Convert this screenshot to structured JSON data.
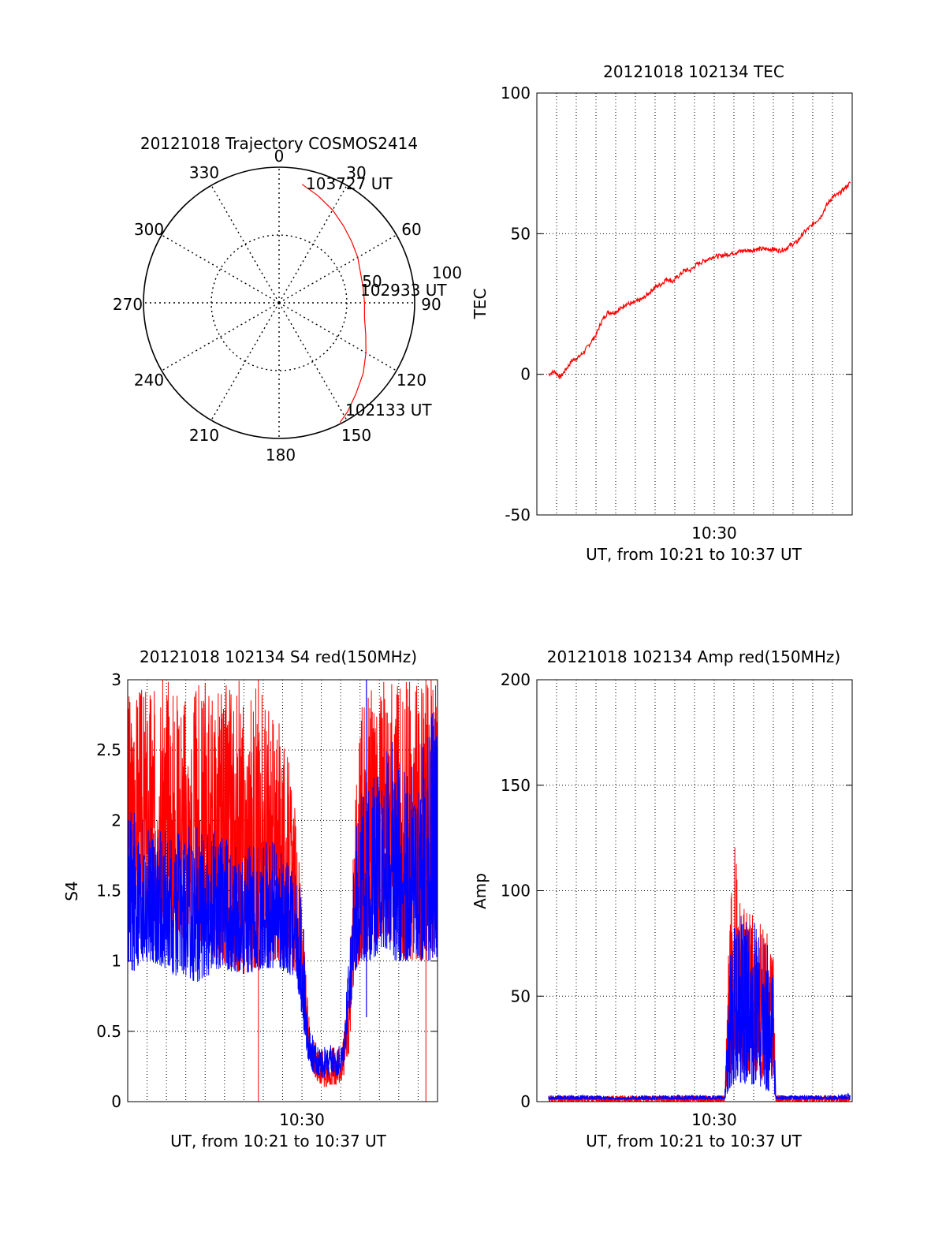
{
  "colors": {
    "red": "#ff0000",
    "blue": "#0000ff",
    "axis": "#000000",
    "grid": "#000000",
    "background": "#ffffff"
  },
  "polar": {
    "title": "20121018 Trajectory COSMOS2414",
    "angle_labels": [
      "0",
      "30",
      "60",
      "90",
      "120",
      "150",
      "180",
      "210",
      "240",
      "270",
      "300",
      "330"
    ],
    "radius_labels": [
      "50",
      "100"
    ],
    "time_labels": [
      "103727 UT",
      "102933 UT",
      "102133 UT"
    ]
  },
  "chart_data": [
    {
      "type": "polar-line",
      "name": "trajectory",
      "title": "20121018 Trajectory COSMOS2414",
      "angular_ticks": [
        0,
        30,
        60,
        90,
        120,
        150,
        180,
        210,
        240,
        270,
        300,
        330
      ],
      "radial_ticks": [
        50,
        100
      ],
      "direction": "clockwise",
      "zero": "top",
      "annotations": [
        {
          "text": "103727 UT",
          "azimuth": 11,
          "elev": 89
        },
        {
          "text": "102933 UT",
          "azimuth": 81,
          "elev": 63
        },
        {
          "text": "102133 UT",
          "azimuth": 153,
          "elev": 99
        }
      ],
      "series": [
        {
          "color": "#ff0000",
          "points": [
            [
              11,
              89
            ],
            [
              20,
              84
            ],
            [
              30,
              79
            ],
            [
              40,
              74
            ],
            [
              50,
              70
            ],
            [
              60,
              67
            ],
            [
              70,
              64
            ],
            [
              80,
              63
            ],
            [
              90,
              63
            ],
            [
              100,
              64
            ],
            [
              110,
              68
            ],
            [
              120,
              74
            ],
            [
              130,
              81
            ],
            [
              140,
              88
            ],
            [
              148,
              95
            ],
            [
              153,
              99
            ]
          ]
        }
      ]
    },
    {
      "type": "line",
      "name": "tec",
      "title": "20121018 102134 TEC",
      "ylabel": "TEC",
      "xlabel": "UT, from 10:21 to 10:37 UT",
      "xlim": [
        10.35,
        10.6167
      ],
      "ylim": [
        -50,
        100
      ],
      "yticks": [
        -50,
        0,
        50,
        100
      ],
      "xticks": [
        {
          "value": 10.5,
          "label": "10:30"
        }
      ],
      "grid": true,
      "series": [
        {
          "color": "#ff0000",
          "x": [
            10.36,
            10.365,
            10.37,
            10.375,
            10.38,
            10.385,
            10.39,
            10.395,
            10.4,
            10.405,
            10.41,
            10.415,
            10.42,
            10.425,
            10.43,
            10.435,
            10.44,
            10.445,
            10.45,
            10.455,
            10.46,
            10.465,
            10.47,
            10.475,
            10.48,
            10.485,
            10.49,
            10.495,
            10.5,
            10.505,
            10.51,
            10.515,
            10.52,
            10.525,
            10.53,
            10.535,
            10.54,
            10.545,
            10.55,
            10.555,
            10.56,
            10.565,
            10.57,
            10.575,
            10.58,
            10.585,
            10.59,
            10.595,
            10.6,
            10.605,
            10.61,
            10.615
          ],
          "y": [
            0,
            1,
            -1,
            2,
            5,
            6,
            8,
            11,
            14,
            19,
            22,
            22,
            23,
            25,
            25,
            26,
            27,
            29,
            31,
            32,
            34,
            33,
            35,
            37,
            37,
            39,
            40,
            41,
            42,
            42,
            42.5,
            43,
            43.5,
            44,
            44,
            44.5,
            44.5,
            44.5,
            44.5,
            44,
            44.5,
            46,
            47,
            50,
            52,
            54,
            56,
            60,
            63,
            64,
            66,
            68
          ]
        }
      ]
    },
    {
      "type": "line",
      "name": "s4",
      "title": "20121018 102134 S4 red(150MHz)",
      "ylabel": "S4",
      "xlabel": "UT, from 10:21 to 10:37 UT",
      "xlim": [
        10.35,
        10.6167
      ],
      "ylim": [
        0,
        3
      ],
      "yticks": [
        0,
        0.5,
        1,
        1.5,
        2,
        2.5,
        3
      ],
      "xticks": [
        {
          "value": 10.5,
          "label": "10:30"
        }
      ],
      "grid": true,
      "envelope_x": [
        10.35,
        10.37,
        10.39,
        10.41,
        10.43,
        10.45,
        10.47,
        10.48,
        10.49,
        10.495,
        10.5,
        10.505,
        10.51,
        10.515,
        10.52,
        10.525,
        10.53,
        10.535,
        10.54,
        10.545,
        10.55,
        10.56,
        10.57,
        10.58,
        10.59,
        10.6,
        10.61,
        10.6167
      ],
      "series": [
        {
          "color": "#ff0000",
          "high": [
            3.0,
            3.0,
            3.0,
            3.0,
            3.0,
            3.0,
            2.9,
            2.7,
            2.4,
            2.0,
            1.4,
            0.7,
            0.45,
            0.4,
            0.38,
            0.4,
            0.38,
            0.4,
            0.8,
            2.0,
            2.8,
            3.0,
            3.0,
            3.0,
            3.0,
            3.0,
            3.0,
            3.0
          ],
          "low": [
            1.4,
            1.3,
            1.2,
            1.1,
            1.0,
            0.9,
            1.0,
            1.0,
            0.95,
            0.9,
            0.7,
            0.4,
            0.2,
            0.12,
            0.1,
            0.12,
            0.12,
            0.15,
            0.3,
            0.9,
            1.0,
            1.1,
            1.2,
            1.1,
            1.0,
            1.0,
            1.0,
            1.0
          ]
        },
        {
          "color": "#0000ff",
          "high": [
            2.1,
            2.0,
            1.9,
            2.0,
            1.9,
            1.8,
            1.9,
            1.8,
            1.7,
            1.6,
            1.5,
            0.6,
            0.45,
            0.4,
            0.4,
            0.42,
            0.4,
            0.45,
            1.0,
            1.8,
            2.2,
            2.3,
            2.5,
            2.6,
            2.4,
            2.4,
            2.8,
            2.8
          ],
          "low": [
            0.9,
            1.0,
            0.9,
            0.85,
            0.95,
            0.9,
            0.95,
            0.95,
            0.9,
            0.9,
            0.6,
            0.3,
            0.2,
            0.18,
            0.17,
            0.18,
            0.18,
            0.2,
            0.5,
            0.9,
            1.0,
            1.0,
            1.1,
            1.0,
            1.0,
            1.0,
            1.0,
            1.0
          ]
        }
      ]
    },
    {
      "type": "line",
      "name": "amp",
      "title": "20121018 102134 Amp red(150MHz)",
      "ylabel": "Amp",
      "xlabel": "UT, from 10:21 to 10:37 UT",
      "xlim": [
        10.35,
        10.6167
      ],
      "ylim": [
        0,
        200
      ],
      "yticks": [
        0,
        50,
        100,
        150,
        200
      ],
      "xticks": [
        {
          "value": 10.5,
          "label": "10:30"
        }
      ],
      "grid": true,
      "envelope_x": [
        10.36,
        10.38,
        10.4,
        10.42,
        10.44,
        10.46,
        10.48,
        10.5,
        10.507,
        10.509,
        10.512,
        10.515,
        10.518,
        10.52,
        10.525,
        10.53,
        10.535,
        10.54,
        10.545,
        10.55,
        10.552,
        10.56,
        10.58,
        10.6,
        10.615
      ],
      "series": [
        {
          "color": "#ff0000",
          "high": [
            3,
            3,
            3,
            3,
            3,
            3,
            3,
            3,
            3,
            3,
            70,
            110,
            130,
            100,
            95,
            90,
            88,
            85,
            80,
            70,
            3,
            3,
            3,
            3,
            3
          ],
          "low": [
            0,
            0,
            0,
            0,
            0,
            0,
            0,
            0,
            0,
            0,
            10,
            15,
            12,
            15,
            15,
            12,
            12,
            10,
            10,
            12,
            0,
            0,
            0,
            0,
            0
          ]
        },
        {
          "color": "#0000ff",
          "high": [
            3,
            3,
            3,
            2,
            3,
            3,
            3,
            3,
            3,
            3,
            55,
            80,
            85,
            88,
            90,
            88,
            85,
            80,
            75,
            60,
            3,
            3,
            3,
            3,
            4
          ],
          "low": [
            1,
            1,
            1,
            1,
            1,
            1,
            1,
            1,
            1,
            1,
            5,
            8,
            8,
            10,
            8,
            8,
            8,
            6,
            5,
            5,
            1,
            1,
            1,
            1,
            1
          ]
        }
      ]
    }
  ]
}
